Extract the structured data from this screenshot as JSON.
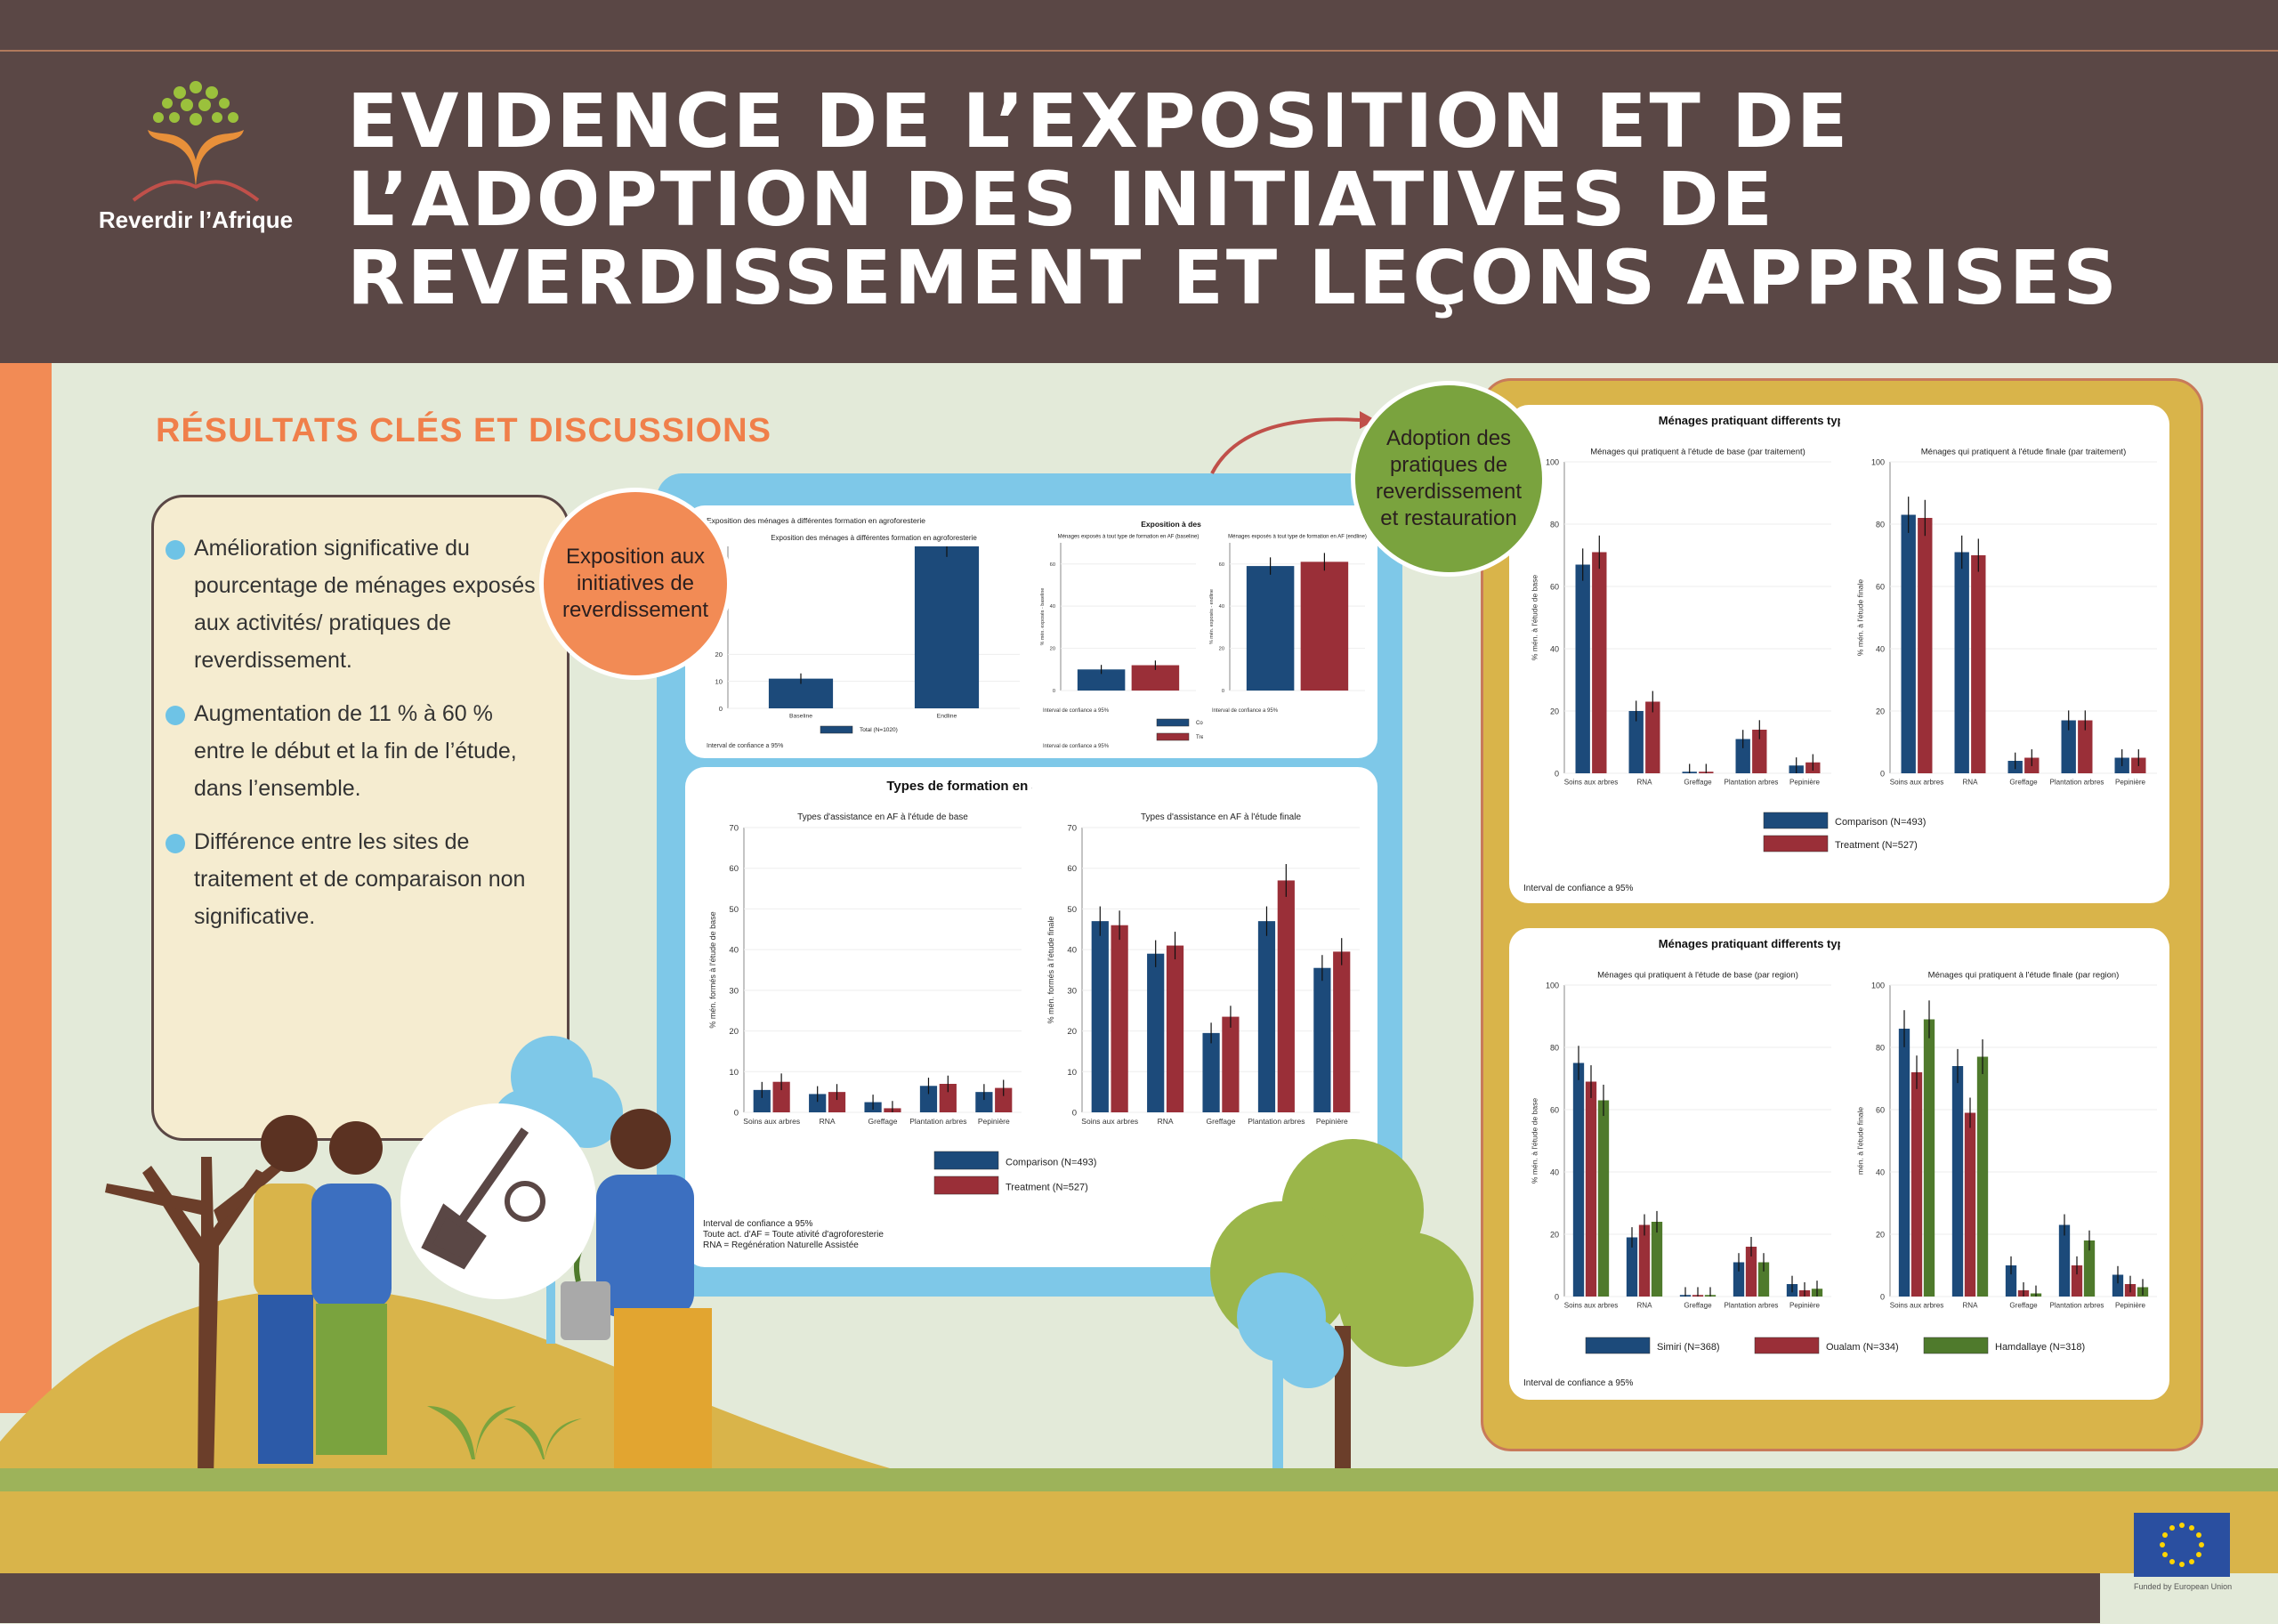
{
  "header": {
    "title_lines": [
      "EVIDENCE DE L’EXPOSITION ET DE",
      "L’ADOPTION DES INITIATIVES DE",
      "REVERDISSEMENT ET LEÇONS APPRISES"
    ],
    "logo_text": "Reverdir l’Afrique"
  },
  "section_title": "RÉSULTATS CLÉS ET DISCUSSIONS",
  "bullets": [
    "Amélioration significative du pourcentage de ménages exposés aux activités/ pratiques de reverdissement.",
    "Augmentation de 11 % à 60 % entre le début et la fin de l’étude, dans l’ensemble.",
    "Différence entre les sites de traitement et de comparaison non significative."
  ],
  "circles": {
    "exposition": "Exposition aux initiatives de reverdissement",
    "adoption": "Adoption des pratiques de reverdissement et restauration"
  },
  "footer": {
    "eu_text": "Funded by European Union"
  },
  "colors": {
    "blue": "#1c4a7a",
    "red": "#9a2f38",
    "green": "#4f7a2c",
    "orange": "#f28b55",
    "brown": "#5a4745"
  },
  "chart_data": [
    {
      "id": "exp-total",
      "type": "bar",
      "title": "Exposition des ménages à différentes formation en agroforesterie",
      "categories": [
        "Baseline",
        "Endline"
      ],
      "series": [
        {
          "name": "Total (N=1020)",
          "values": [
            11,
            60
          ]
        }
      ],
      "ylim": [
        0,
        60
      ],
      "yticks": [
        0,
        10,
        20
      ],
      "note": "Interval de confiance a 95%"
    },
    {
      "id": "exp-base",
      "type": "bar",
      "supertitle": "Exposition à des formations en AF",
      "title": "Ménages exposés à tout type de formation en AF (baseline)",
      "ylabel": "% mén. exposés - baseline",
      "categories": [
        ""
      ],
      "series": [
        {
          "name": "Comparison (N=493)",
          "values": [
            10
          ]
        },
        {
          "name": "Treatment (N=527)",
          "values": [
            12
          ]
        }
      ],
      "ylim": [
        0,
        70
      ],
      "yticks": [
        0,
        20,
        40,
        60
      ],
      "note": "Interval de confiance a 95%"
    },
    {
      "id": "exp-end",
      "type": "bar",
      "title": "Ménages exposés à tout type de formation en AF (endline)",
      "ylabel": "% mén. exposés - endline",
      "categories": [
        ""
      ],
      "series": [
        {
          "name": "Comparison (N=493)",
          "values": [
            59
          ]
        },
        {
          "name": "Treatment (N=527)",
          "values": [
            61
          ]
        }
      ],
      "ylim": [
        0,
        70
      ],
      "yticks": [
        0,
        20,
        40,
        60
      ],
      "note": "Interval de confiance a 95%",
      "legend": [
        "Comparison (N=493)",
        "Treatment (N=527)"
      ]
    },
    {
      "id": "assist-base",
      "type": "bar",
      "supertitle": "Types de formation en agroforesterie fournies",
      "title": "Types d'assistance en AF à l'étude de base",
      "ylabel": "% mén. formés à l'étude de base",
      "categories": [
        "Soins aux arbres",
        "RNA",
        "Greffage",
        "Plantation arbres",
        "Pepinière"
      ],
      "series": [
        {
          "name": "Comparison (N=493)",
          "values": [
            5.5,
            4.5,
            2.5,
            6.5,
            5
          ]
        },
        {
          "name": "Treatment (N=527)",
          "values": [
            7.5,
            5,
            1,
            7,
            6
          ]
        }
      ],
      "ylim": [
        0,
        70
      ],
      "yticks": [
        0,
        10,
        20,
        30,
        40,
        50,
        60,
        70
      ]
    },
    {
      "id": "assist-end",
      "type": "bar",
      "title": "Types d'assistance en AF à l'étude finale",
      "ylabel": "% mén. formés à l'étude finale",
      "categories": [
        "Soins aux arbres",
        "RNA",
        "Greffage",
        "Plantation arbres",
        "Pepinière"
      ],
      "series": [
        {
          "name": "Comparison (N=493)",
          "values": [
            47,
            39,
            19.5,
            47,
            35.5
          ]
        },
        {
          "name": "Treatment (N=527)",
          "values": [
            46,
            41,
            23.5,
            57,
            39.5
          ]
        }
      ],
      "ylim": [
        0,
        70
      ],
      "yticks": [
        0,
        10,
        20,
        30,
        40,
        50,
        60,
        70
      ],
      "legend": [
        "Comparison (N=493)",
        "Treatment (N=527)"
      ],
      "notes": [
        "Interval de confiance a 95%",
        "Toute act. d'AF = Toute ativité d'agroforesterie",
        "RNA = Regénération Naturelle Assistée"
      ]
    },
    {
      "id": "prat-base-trt",
      "type": "bar",
      "supertitle": "Ménages pratiquant differents types d'activités de reverdissement",
      "title": "Ménages qui pratiquent à l'étude de base (par traitement)",
      "ylabel": "% mén. à l'étude de base",
      "categories": [
        "Soins aux arbres",
        "RNA",
        "Greffage",
        "Plantation arbres",
        "Pepinière"
      ],
      "series": [
        {
          "name": "Comparison (N=493)",
          "values": [
            67,
            20,
            0.5,
            11,
            2.5
          ]
        },
        {
          "name": "Treatment (N=527)",
          "values": [
            71,
            23,
            0.5,
            14,
            3.5
          ]
        }
      ],
      "ylim": [
        0,
        100
      ],
      "yticks": [
        0,
        20,
        40,
        60,
        80,
        100
      ]
    },
    {
      "id": "prat-end-trt",
      "type": "bar",
      "title": "Ménages qui pratiquent à l'étude finale (par traitement)",
      "ylabel": "% mén. à l'étude finale",
      "categories": [
        "Soins aux arbres",
        "RNA",
        "Greffage",
        "Plantation arbres",
        "Pepinière"
      ],
      "series": [
        {
          "name": "Comparison (N=493)",
          "values": [
            83,
            71,
            4,
            17,
            5
          ]
        },
        {
          "name": "Treatment (N=527)",
          "values": [
            82,
            70,
            5,
            17,
            5
          ]
        }
      ],
      "ylim": [
        0,
        100
      ],
      "yticks": [
        0,
        20,
        40,
        60,
        80,
        100
      ],
      "legend": [
        "Comparison (N=493)",
        "Treatment (N=527)"
      ],
      "note": "Interval de confiance a 95%"
    },
    {
      "id": "prat-base-reg",
      "type": "bar",
      "supertitle": "Ménages pratiquant differents types d'activités de reverdissement",
      "title": "Ménages qui pratiquent à l'étude de base (par region)",
      "ylabel": "% mén. à l'étude de base",
      "categories": [
        "Soins aux arbres",
        "RNA",
        "Greffage",
        "Plantation arbres",
        "Pepinière"
      ],
      "series": [
        {
          "name": "Simiri (N=368)",
          "values": [
            75,
            19,
            0.5,
            11,
            4
          ]
        },
        {
          "name": "Oualam (N=334)",
          "values": [
            69,
            23,
            0.5,
            16,
            2
          ]
        },
        {
          "name": "Hamdallaye (N=318)",
          "values": [
            63,
            24,
            0.5,
            11,
            2.5
          ]
        }
      ],
      "ylim": [
        0,
        100
      ],
      "yticks": [
        0,
        20,
        40,
        60,
        80,
        100
      ]
    },
    {
      "id": "prat-end-reg",
      "type": "bar",
      "title": "Ménages qui pratiquent à l'étude finale (par region)",
      "ylabel": "mén. à l'étude finale",
      "categories": [
        "Soins aux arbres",
        "RNA",
        "Greffage",
        "Plantation arbres",
        "Pepinière"
      ],
      "series": [
        {
          "name": "Simiri (N=368)",
          "values": [
            86,
            74,
            10,
            23,
            7
          ]
        },
        {
          "name": "Oualam (N=334)",
          "values": [
            72,
            59,
            2,
            10,
            4
          ]
        },
        {
          "name": "Hamdallaye (N=318)",
          "values": [
            89,
            77,
            1,
            18,
            3
          ]
        }
      ],
      "ylim": [
        0,
        100
      ],
      "yticks": [
        0,
        20,
        40,
        60,
        80,
        100
      ],
      "legend": [
        "Simiri (N=368)",
        "Oualam (N=334)",
        "Hamdallaye (N=318)"
      ],
      "note": "Interval de confiance a 95%"
    }
  ]
}
